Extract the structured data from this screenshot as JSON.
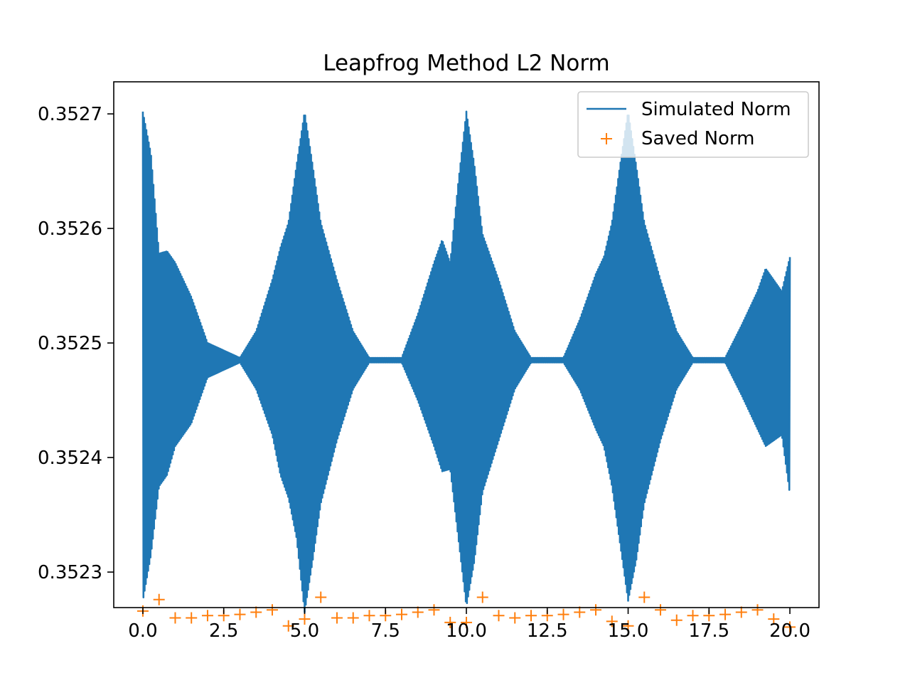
{
  "chart_data": {
    "type": "line",
    "title": "Leapfrog Method L2 Norm",
    "xlabel": "",
    "ylabel": "",
    "xlim": [
      -0.9,
      20.9
    ],
    "ylim": [
      0.352269,
      0.352728
    ],
    "x_ticks": [
      0.0,
      2.5,
      5.0,
      7.5,
      10.0,
      12.5,
      15.0,
      17.5,
      20.0
    ],
    "x_tick_labels": [
      "0.0",
      "2.5",
      "5.0",
      "7.5",
      "10.0",
      "12.5",
      "15.0",
      "17.5",
      "20.0"
    ],
    "y_ticks": [
      0.3523,
      0.3524,
      0.3525,
      0.3526,
      0.3527
    ],
    "y_tick_labels": [
      "0.3523",
      "0.3524",
      "0.3525",
      "0.3526",
      "0.3527"
    ],
    "grid": false,
    "legend_position": "top-right",
    "series": [
      {
        "name": "Simulated Norm",
        "style": "line",
        "color": "#1f77b4",
        "baseline": 0.352485,
        "x": [
          0.0,
          0.25,
          0.5,
          0.75,
          1.0,
          1.5,
          2.0,
          3.0,
          3.5,
          4.0,
          4.25,
          4.5,
          4.75,
          5.0,
          5.25,
          5.5,
          6.0,
          6.5,
          7.0,
          8.0,
          8.5,
          9.0,
          9.25,
          9.5,
          9.75,
          10.0,
          10.25,
          10.5,
          11.0,
          11.5,
          12.0,
          13.0,
          13.5,
          14.0,
          14.25,
          14.5,
          14.75,
          15.0,
          15.25,
          15.5,
          16.0,
          16.5,
          17.0,
          18.0,
          18.5,
          19.0,
          19.25,
          19.5,
          19.75,
          20.0
        ],
        "envelope_max": [
          0.352702,
          0.352665,
          0.352578,
          0.35258,
          0.35257,
          0.35254,
          0.3525,
          0.352487,
          0.35251,
          0.352555,
          0.352583,
          0.352605,
          0.352655,
          0.352702,
          0.352655,
          0.352605,
          0.352555,
          0.35251,
          0.352487,
          0.352487,
          0.352525,
          0.35257,
          0.35259,
          0.35257,
          0.35264,
          0.352702,
          0.352655,
          0.352595,
          0.352555,
          0.35251,
          0.352487,
          0.352487,
          0.35252,
          0.35256,
          0.352575,
          0.352605,
          0.352655,
          0.352702,
          0.352655,
          0.352605,
          0.352555,
          0.35251,
          0.352487,
          0.352487,
          0.352515,
          0.352545,
          0.352565,
          0.352555,
          0.352545,
          0.352575
        ],
        "envelope_min": [
          0.352275,
          0.352315,
          0.352375,
          0.352385,
          0.35241,
          0.35243,
          0.35247,
          0.352483,
          0.35246,
          0.35242,
          0.352385,
          0.352365,
          0.35233,
          0.352265,
          0.35231,
          0.35236,
          0.352415,
          0.35246,
          0.352483,
          0.352483,
          0.35245,
          0.35241,
          0.352388,
          0.35239,
          0.35233,
          0.35227,
          0.35231,
          0.35237,
          0.352415,
          0.35246,
          0.352483,
          0.352483,
          0.35246,
          0.352425,
          0.35241,
          0.352375,
          0.352325,
          0.352275,
          0.35231,
          0.35236,
          0.352415,
          0.35246,
          0.352483,
          0.352483,
          0.352455,
          0.352425,
          0.35241,
          0.352415,
          0.35242,
          0.352368
        ]
      },
      {
        "name": "Saved Norm",
        "style": "marker",
        "marker": "+",
        "color": "#ff7f0e",
        "x": [
          0.0,
          0.5,
          1.0,
          1.5,
          2.0,
          2.5,
          3.0,
          3.5,
          4.0,
          4.5,
          5.0,
          5.5,
          6.0,
          6.5,
          7.0,
          7.5,
          8.0,
          8.5,
          9.0,
          9.5,
          10.0,
          10.5,
          11.0,
          11.5,
          12.0,
          12.5,
          13.0,
          13.5,
          14.0,
          14.5,
          15.0,
          15.5,
          16.0,
          16.5,
          17.0,
          17.5,
          18.0,
          18.5,
          19.0,
          19.5,
          20.0
        ],
        "values": [
          0.352266,
          0.352276,
          0.35226,
          0.35226,
          0.352262,
          0.352262,
          0.352263,
          0.352265,
          0.352267,
          0.352253,
          0.352259,
          0.352278,
          0.35226,
          0.35226,
          0.352262,
          0.352262,
          0.352263,
          0.352265,
          0.352267,
          0.352256,
          0.352256,
          0.352278,
          0.352262,
          0.35226,
          0.352262,
          0.352262,
          0.352263,
          0.352265,
          0.352267,
          0.352257,
          0.352253,
          0.352278,
          0.352267,
          0.352258,
          0.352262,
          0.352262,
          0.352263,
          0.352265,
          0.352267,
          0.352259,
          0.352252
        ]
      }
    ]
  }
}
